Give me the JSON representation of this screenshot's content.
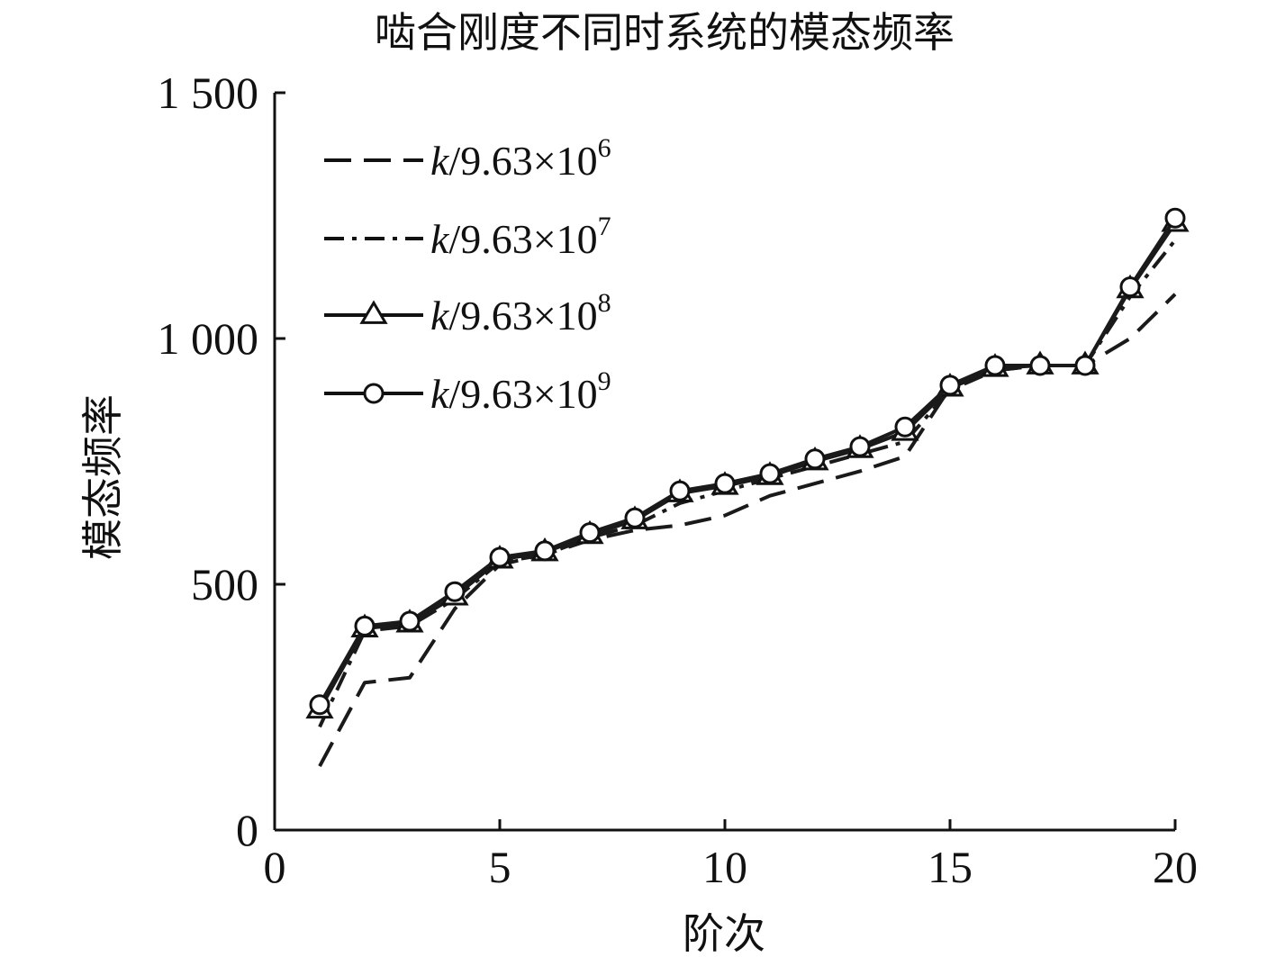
{
  "chart_data": {
    "type": "line",
    "title": "啮合刚度不同时系统的模态频率",
    "xlabel": "阶次",
    "ylabel": "模态频率",
    "xlim": [
      0,
      20
    ],
    "ylim": [
      0,
      1500
    ],
    "x_ticks": [
      0,
      5,
      10,
      15,
      20
    ],
    "x_tick_labels": [
      "0",
      "5",
      "10",
      "15",
      "20"
    ],
    "y_ticks": [
      0,
      500,
      1000,
      1500
    ],
    "y_tick_labels": [
      "0",
      "500",
      "1 000",
      "1 500"
    ],
    "grid": false,
    "legend_position": "top-left",
    "x": [
      1,
      2,
      3,
      4,
      5,
      6,
      7,
      8,
      9,
      10,
      11,
      12,
      13,
      14,
      15,
      16,
      17,
      18,
      19,
      20
    ],
    "series": [
      {
        "name": "k/9.63×10^6",
        "legend": {
          "italic": "k",
          "base": "/9.63×10",
          "exp": "6"
        },
        "line_style": "dashed",
        "marker": "none",
        "color": "#1a1a1a",
        "values": [
          130,
          300,
          310,
          450,
          540,
          560,
          590,
          610,
          620,
          640,
          680,
          705,
          730,
          760,
          900,
          935,
          945,
          945,
          1000,
          1090
        ]
      },
      {
        "name": "k/9.63×10^7",
        "legend": {
          "italic": "k",
          "base": "/9.63×10",
          "exp": "7"
        },
        "line_style": "dashdot",
        "marker": "none",
        "color": "#1a1a1a",
        "values": [
          210,
          405,
          415,
          470,
          545,
          560,
          595,
          620,
          665,
          690,
          715,
          740,
          765,
          790,
          895,
          935,
          945,
          945,
          1085,
          1200
        ]
      },
      {
        "name": "k/9.63×10^8",
        "legend": {
          "italic": "k",
          "base": "/9.63×10",
          "exp": "8"
        },
        "line_style": "solid",
        "marker": "triangle",
        "color": "#1a1a1a",
        "values": [
          245,
          410,
          420,
          475,
          550,
          565,
          600,
          630,
          685,
          700,
          720,
          750,
          775,
          810,
          900,
          940,
          945,
          945,
          1100,
          1235
        ]
      },
      {
        "name": "k/9.63×10^9",
        "legend": {
          "italic": "k",
          "base": "/9.63×10",
          "exp": "9"
        },
        "line_style": "solid",
        "marker": "circle",
        "color": "#1a1a1a",
        "values": [
          255,
          415,
          425,
          485,
          555,
          568,
          605,
          635,
          690,
          705,
          725,
          755,
          780,
          820,
          905,
          945,
          945,
          945,
          1105,
          1245
        ]
      }
    ]
  }
}
